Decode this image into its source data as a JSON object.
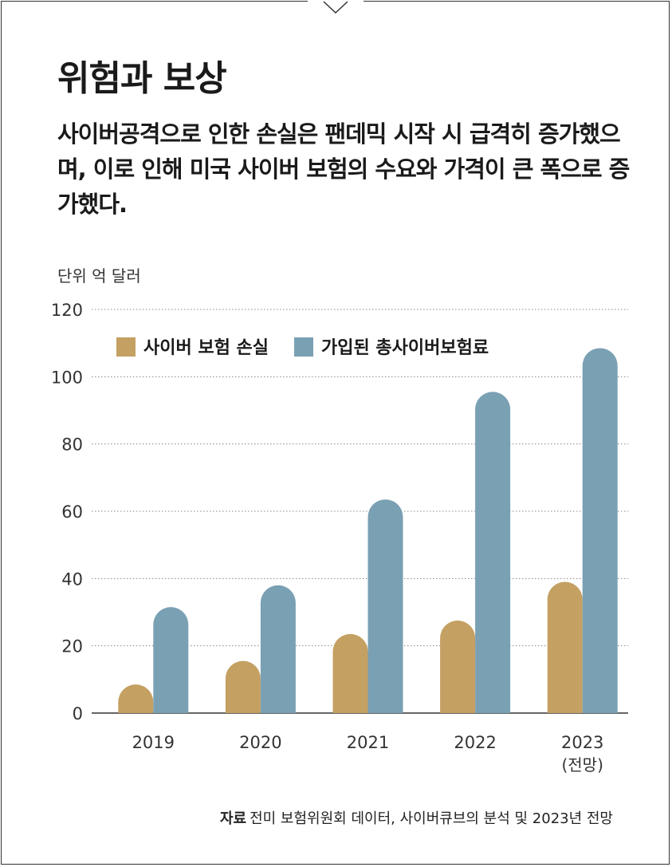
{
  "title": "위험과 보상",
  "subtitle": "사이버공격으로 인한 손실은 팬데믹 시작 시 급격히 증가했으며, 이로 인해 미국 사이버 보험의 수요와 가격이 큰 폭으로 증가했다.",
  "source": {
    "label": "자료",
    "text": "전미 보험위원회 데이터, 사이버큐브의 분석 및 2023년 전망"
  },
  "colors": {
    "losses": "#c4a062",
    "premiums": "#7aa0b3",
    "axis": "#333333",
    "grid": "#888888"
  },
  "chart_data": {
    "type": "bar",
    "unit_label": "단위 억 달러",
    "categories": [
      "2019",
      "2020",
      "2021",
      "2022",
      "2023"
    ],
    "category_sublabels": [
      "",
      "",
      "",
      "",
      "(전망)"
    ],
    "series": [
      {
        "name": "사이버 보험 손실",
        "values": [
          8.5,
          15.5,
          23.5,
          27.5,
          39
        ]
      },
      {
        "name": "가입된 총사이버보험료",
        "values": [
          31.5,
          38,
          63.5,
          95.5,
          108.5
        ]
      }
    ],
    "ylim": [
      0,
      120
    ],
    "yticks": [
      0,
      20,
      40,
      60,
      80,
      100,
      120
    ],
    "grid": true,
    "grid_style": "dotted",
    "legend_position": "top-left"
  }
}
